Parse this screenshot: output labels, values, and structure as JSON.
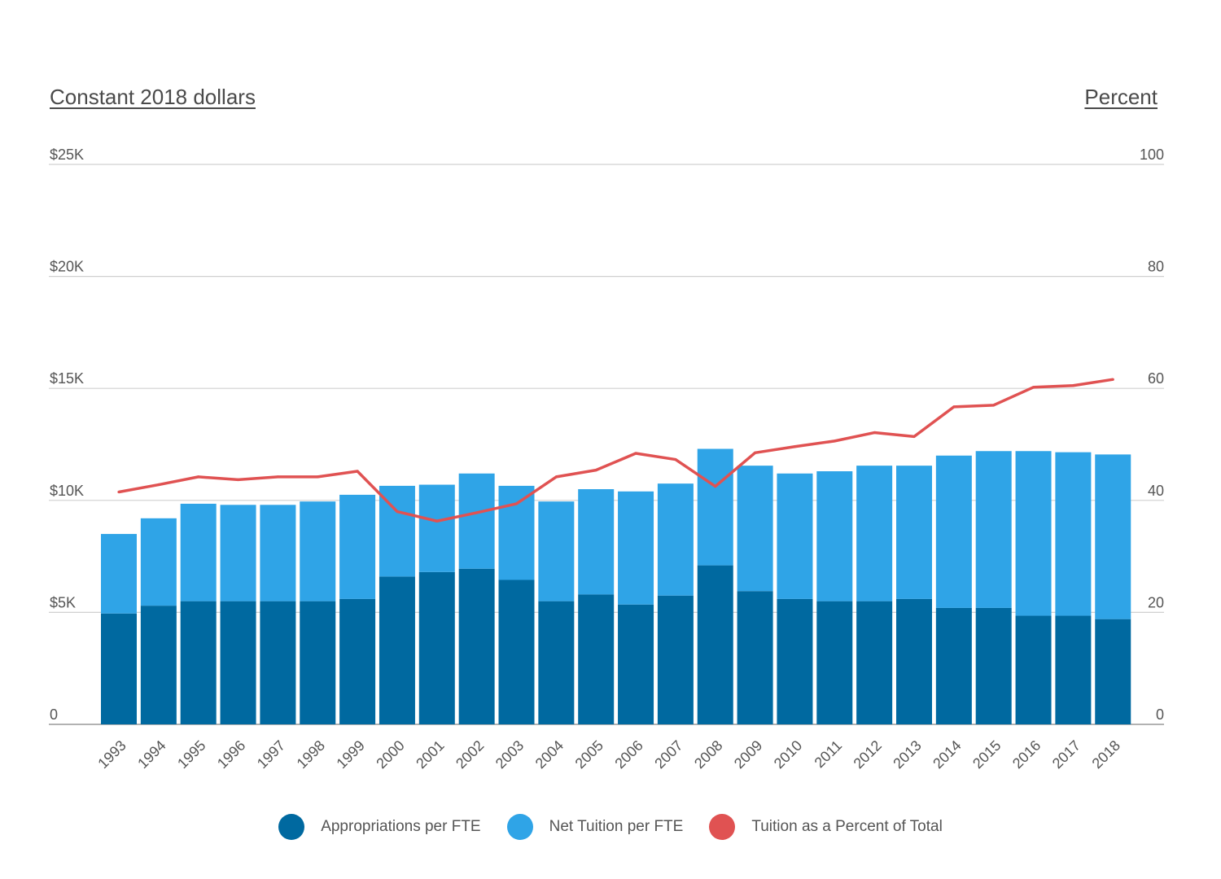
{
  "chart_data": {
    "type": "bar",
    "stacked": true,
    "left_axis_title": "Constant 2018 dollars",
    "right_axis_title": "Percent",
    "left_ticks": [
      "0",
      "$5K",
      "$10K",
      "$15K",
      "$20K",
      "$25K"
    ],
    "right_ticks": [
      "0",
      "20",
      "40",
      "60",
      "80",
      "100"
    ],
    "ylim_left": [
      0,
      25000
    ],
    "ylim_right": [
      0,
      100
    ],
    "grid": true,
    "legend_position": "bottom",
    "categories": [
      "1993",
      "1994",
      "1995",
      "1996",
      "1997",
      "1998",
      "1999",
      "2000",
      "2001",
      "2002",
      "2003",
      "2004",
      "2005",
      "2006",
      "2007",
      "2008",
      "2009",
      "2010",
      "2011",
      "2012",
      "2013",
      "2014",
      "2015",
      "2016",
      "2017",
      "2018"
    ],
    "series": [
      {
        "name": "Appropriations per FTE",
        "color": "#0069a0",
        "axis": "left",
        "kind": "bar",
        "values": [
          4950,
          5300,
          5500,
          5500,
          5500,
          5500,
          5600,
          6600,
          6800,
          6950,
          6450,
          5500,
          5800,
          5350,
          5750,
          7100,
          5950,
          5600,
          5500,
          5500,
          5600,
          5200,
          5200,
          4850,
          4850,
          4700
        ]
      },
      {
        "name": "Net Tuition per FTE",
        "color": "#2fa4e7",
        "axis": "left",
        "kind": "bar",
        "values": [
          3550,
          3900,
          4350,
          4300,
          4300,
          4450,
          4650,
          4050,
          3900,
          4250,
          4200,
          4450,
          4700,
          5050,
          5000,
          5200,
          5600,
          5600,
          5800,
          6050,
          5950,
          6800,
          7000,
          7350,
          7300,
          7350
        ]
      },
      {
        "name": "Tuition as a Percent of Total",
        "color": "#e05252",
        "axis": "right",
        "kind": "line",
        "values": [
          41.5,
          42.8,
          44.2,
          43.7,
          44.2,
          44.2,
          45.2,
          38.0,
          36.3,
          37.8,
          39.4,
          44.2,
          45.4,
          48.4,
          47.3,
          42.5,
          48.5,
          49.6,
          50.6,
          52.1,
          51.4,
          56.7,
          57.0,
          60.2,
          60.5,
          61.6
        ]
      }
    ]
  }
}
